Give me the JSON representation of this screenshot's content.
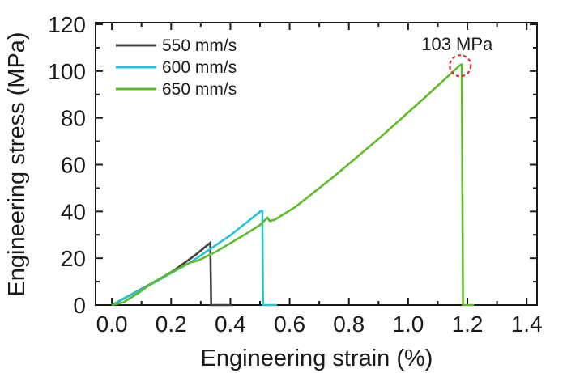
{
  "figure": {
    "background": "#ffffff",
    "axis_color": "#1a1a1a"
  },
  "chart_data": {
    "type": "line",
    "title": "",
    "xlabel": "Engineering strain (%)",
    "ylabel": "Engineering stress (MPa)",
    "x_axis": {
      "label": "Engineering strain (%)",
      "range": [
        -0.055,
        1.435
      ],
      "major": [
        0.0,
        0.2,
        0.4,
        0.6,
        0.8,
        1.0,
        1.2,
        1.4
      ],
      "major_labels": [
        "0.0",
        "0.2",
        "0.4",
        "0.6",
        "0.8",
        "1.0",
        "1.2",
        "1.4"
      ],
      "minor": [
        0.1,
        0.3,
        0.5,
        0.7,
        0.9,
        1.1,
        1.3
      ]
    },
    "y_axis": {
      "label": "Engineering stress (MPa)",
      "range": [
        0,
        120.7
      ],
      "major": [
        0,
        20,
        40,
        60,
        80,
        100,
        120
      ],
      "major_labels": [
        "0",
        "20",
        "40",
        "60",
        "80",
        "100",
        "120"
      ],
      "minor": [
        10,
        30,
        50,
        70,
        90,
        110
      ]
    },
    "grid": "off",
    "legend_position": "top-left",
    "series": [
      {
        "name": "550 mm/s",
        "color": "#404040",
        "peak_stress_mpa": 26.5,
        "failure_strain_pct": 0.335,
        "points": [
          [
            0,
            0
          ],
          [
            0.14,
            9.6
          ],
          [
            0.21,
            14.8
          ],
          [
            0.28,
            21.2
          ],
          [
            0.332,
            26.6
          ],
          [
            0.335,
            0
          ],
          [
            0.405,
            0
          ]
        ]
      },
      {
        "name": "600 mm/s",
        "color": "#28c3d6",
        "peak_stress_mpa": 40,
        "failure_strain_pct": 0.51,
        "points": [
          [
            0,
            0
          ],
          [
            0.14,
            9.4
          ],
          [
            0.27,
            18.6
          ],
          [
            0.4,
            29.8
          ],
          [
            0.503,
            40.2
          ],
          [
            0.508,
            40.2
          ],
          [
            0.51,
            0
          ],
          [
            0.557,
            0
          ]
        ]
      },
      {
        "name": "650 mm/s",
        "color": "#5cbc2a",
        "peak_stress_mpa": 103,
        "failure_strain_pct": 1.185,
        "points": [
          [
            0,
            0
          ],
          [
            0.04,
            1.2
          ],
          [
            0.09,
            5.2
          ],
          [
            0.14,
            9.8
          ],
          [
            0.25,
            17.3
          ],
          [
            0.268,
            18.3
          ],
          [
            0.288,
            18.9
          ],
          [
            0.305,
            19.9
          ],
          [
            0.35,
            22.7
          ],
          [
            0.45,
            30.2
          ],
          [
            0.5,
            34.2
          ],
          [
            0.525,
            37.3
          ],
          [
            0.533,
            35.9
          ],
          [
            0.55,
            36.5
          ],
          [
            0.62,
            42
          ],
          [
            0.75,
            55
          ],
          [
            0.9,
            71
          ],
          [
            1.05,
            88
          ],
          [
            1.175,
            102.5
          ],
          [
            1.181,
            102.8
          ],
          [
            1.185,
            0
          ],
          [
            1.222,
            0
          ]
        ]
      }
    ],
    "annotation": {
      "label": "103 MPa",
      "x": 1.176,
      "y": 102.3,
      "circle_radius": 13,
      "circle_color": "#e8282d"
    }
  }
}
